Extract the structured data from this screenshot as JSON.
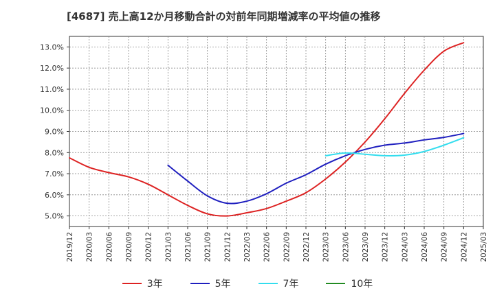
{
  "title": "[4687]  売上高12か月移動合計の対前年同期増減率の平均値の推移",
  "colors": {
    "3y": "#dd2222",
    "5y": "#1f1fbf",
    "7y": "#33ddee",
    "10y": "#228b22",
    "grid": "#888888",
    "axis": "#333333"
  },
  "chart_data": {
    "type": "line",
    "title": "[4687]  売上高12か月移動合計の対前年同期増減率の平均値の推移",
    "xlabel": "",
    "ylabel": "",
    "x_ticks": [
      "2019/12",
      "2020/03",
      "2020/06",
      "2020/09",
      "2020/12",
      "2021/03",
      "2021/06",
      "2021/09",
      "2021/12",
      "2022/03",
      "2022/06",
      "2022/09",
      "2022/12",
      "2023/03",
      "2023/06",
      "2023/09",
      "2023/12",
      "2024/03",
      "2024/06",
      "2024/09",
      "2024/12",
      "2025/03"
    ],
    "y_ticks": [
      "5.0%",
      "6.0%",
      "7.0%",
      "8.0%",
      "9.0%",
      "10.0%",
      "11.0%",
      "12.0%",
      "13.0%"
    ],
    "ylim": [
      4.5,
      13.5
    ],
    "grid": true,
    "legend_position": "bottom",
    "series": [
      {
        "name": "3年",
        "color": "#dd2222",
        "x": [
          "2019/12",
          "2020/03",
          "2020/06",
          "2020/09",
          "2020/12",
          "2021/03",
          "2021/06",
          "2021/09",
          "2021/12",
          "2022/03",
          "2022/06",
          "2022/09",
          "2022/12",
          "2023/03",
          "2023/06",
          "2023/09",
          "2023/12",
          "2024/03",
          "2024/06",
          "2024/09",
          "2024/12"
        ],
        "values": [
          7.75,
          7.3,
          7.05,
          6.85,
          6.5,
          6.0,
          5.5,
          5.1,
          5.0,
          5.15,
          5.35,
          5.7,
          6.1,
          6.75,
          7.55,
          8.5,
          9.6,
          10.8,
          11.9,
          12.8,
          13.2
        ]
      },
      {
        "name": "5年",
        "color": "#1f1fbf",
        "x": [
          "2021/03",
          "2021/06",
          "2021/09",
          "2021/12",
          "2022/03",
          "2022/06",
          "2022/09",
          "2022/12",
          "2023/03",
          "2023/06",
          "2023/09",
          "2023/12",
          "2024/03",
          "2024/06",
          "2024/09",
          "2024/12"
        ],
        "values": [
          7.4,
          6.65,
          5.95,
          5.6,
          5.7,
          6.05,
          6.55,
          6.95,
          7.45,
          7.85,
          8.15,
          8.35,
          8.45,
          8.6,
          8.72,
          8.9
        ]
      },
      {
        "name": "7年",
        "color": "#33ddee",
        "x": [
          "2023/03",
          "2023/06",
          "2023/09",
          "2023/12",
          "2024/03",
          "2024/06",
          "2024/09",
          "2024/12"
        ],
        "values": [
          7.85,
          7.98,
          7.92,
          7.85,
          7.88,
          8.05,
          8.35,
          8.7
        ]
      },
      {
        "name": "10年",
        "color": "#228b22",
        "x": [],
        "values": []
      }
    ]
  }
}
